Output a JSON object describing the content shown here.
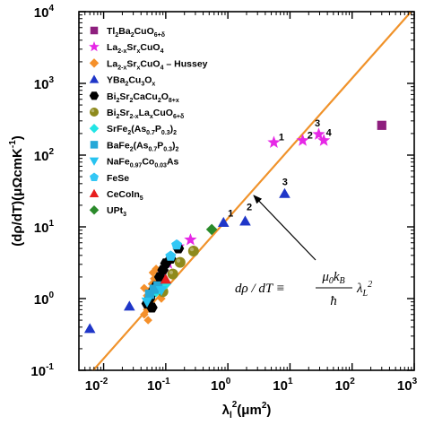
{
  "chart_data": {
    "type": "scatter",
    "x_scale": "log",
    "y_scale": "log",
    "xlim": [
      0.004,
      1000
    ],
    "ylim": [
      0.1,
      10000
    ],
    "xlabel": {
      "base": "λ",
      "sub": "l",
      "sup": "2",
      "unit": "(μm",
      "unit_sup": "2",
      "close": ")"
    },
    "ylabel": {
      "text": "(dρ/dT)(μΩcmK",
      "sup": "-1",
      "close": ")"
    },
    "x_ticks": [
      {
        "base": "10",
        "exp": "-2"
      },
      {
        "base": "10",
        "exp": "-1"
      },
      {
        "base": "10",
        "exp": "0"
      },
      {
        "base": "10",
        "exp": "1"
      },
      {
        "base": "10",
        "exp": "2"
      },
      {
        "base": "10",
        "exp": "3"
      }
    ],
    "y_ticks": [
      {
        "base": "10",
        "exp": "-1"
      },
      {
        "base": "10",
        "exp": "0"
      },
      {
        "base": "10",
        "exp": "1"
      },
      {
        "base": "10",
        "exp": "2"
      },
      {
        "base": "10",
        "exp": "3"
      },
      {
        "base": "10",
        "exp": "4"
      }
    ],
    "fit_line": {
      "color": "#f0922a",
      "points": [
        [
          0.0068,
          0.1
        ],
        [
          890,
          10000
        ]
      ]
    },
    "formula": {
      "lhs": "dρ / dT ≡",
      "numerator": "μ0kB",
      "denominator": "ħ",
      "rhs": "λL²"
    },
    "legend_placement": "top-left",
    "series": [
      {
        "name": "Tl2Ba2CuO6+δ",
        "legend": [
          [
            "Tl",
            ""
          ],
          [
            "2",
            "sub"
          ],
          [
            "Ba",
            ""
          ],
          [
            "2",
            "sub"
          ],
          [
            "CuO",
            ""
          ],
          [
            "6+δ",
            "sub"
          ]
        ],
        "marker": "square",
        "color": "#8e1f7e",
        "points": [
          [
            300,
            260
          ]
        ]
      },
      {
        "name": "La2-xSrxCuO4",
        "legend": [
          [
            "La",
            ""
          ],
          [
            "2-x",
            "sub"
          ],
          [
            "Sr",
            ""
          ],
          [
            "x",
            "sub"
          ],
          [
            "CuO",
            ""
          ],
          [
            "4",
            "sub"
          ]
        ],
        "marker": "star",
        "color": "#e628e6",
        "points": [
          [
            5.5,
            150
          ],
          [
            16,
            160
          ],
          [
            29,
            195
          ],
          [
            35,
            160
          ],
          [
            0.16,
            5.3
          ],
          [
            0.25,
            6.6
          ],
          [
            0.11,
            3.1
          ],
          [
            0.09,
            2.3
          ],
          [
            0.08,
            1.8
          ],
          [
            0.07,
            1.6
          ]
        ]
      },
      {
        "name": "La2-xSrxCuO4 – Hussey",
        "legend": [
          [
            "La",
            ""
          ],
          [
            "2-x",
            "sub"
          ],
          [
            "Sr",
            ""
          ],
          [
            "x",
            "sub"
          ],
          [
            "CuO",
            ""
          ],
          [
            "4",
            "sub"
          ],
          [
            " – Hussey",
            ""
          ]
        ],
        "marker": "diamond",
        "color": "#f5902a",
        "points": [
          [
            0.045,
            1.4
          ],
          [
            0.05,
            1.1
          ],
          [
            0.055,
            1.3
          ],
          [
            0.06,
            1.6
          ],
          [
            0.062,
            2.3
          ],
          [
            0.065,
            1.9
          ],
          [
            0.07,
            2.6
          ],
          [
            0.075,
            2.0
          ],
          [
            0.08,
            1.3
          ],
          [
            0.085,
            1.0
          ],
          [
            0.09,
            1.6
          ],
          [
            0.05,
            0.7
          ],
          [
            0.058,
            0.9
          ],
          [
            0.068,
            1.2
          ],
          [
            0.045,
            0.6
          ],
          [
            0.052,
            0.5
          ]
        ]
      },
      {
        "name": "YBa2Cu3Ox",
        "legend": [
          [
            "YBa",
            ""
          ],
          [
            "2",
            "sub"
          ],
          [
            "Cu",
            ""
          ],
          [
            "3",
            "sub"
          ],
          [
            "O",
            ""
          ],
          [
            "x",
            "sub"
          ]
        ],
        "marker": "triangle",
        "color": "#1f36c8",
        "points": [
          [
            0.006,
            0.38
          ],
          [
            0.026,
            0.78
          ],
          [
            0.85,
            11.5
          ],
          [
            1.9,
            12
          ],
          [
            8.2,
            29
          ]
        ]
      },
      {
        "name": "Bi2Sr2CaCu2O8+x",
        "legend": [
          [
            "Bi",
            ""
          ],
          [
            "2",
            "sub"
          ],
          [
            "Sr",
            ""
          ],
          [
            "2",
            "sub"
          ],
          [
            "CaCu",
            ""
          ],
          [
            "2",
            "sub"
          ],
          [
            "O",
            ""
          ],
          [
            "8+x",
            "sub"
          ]
        ],
        "marker": "hexagon",
        "color": "#000000",
        "points": [
          [
            0.05,
            0.85
          ],
          [
            0.055,
            1.0
          ],
          [
            0.06,
            1.2
          ],
          [
            0.07,
            1.5
          ],
          [
            0.08,
            2.0
          ],
          [
            0.09,
            2.5
          ],
          [
            0.1,
            3.1
          ],
          [
            0.12,
            3.6
          ],
          [
            0.16,
            5.0
          ],
          [
            0.06,
            0.75
          ]
        ]
      },
      {
        "name": "Bi2Sr2-xLaxCuO6+δ",
        "legend": [
          [
            "Bi",
            ""
          ],
          [
            "2",
            "sub"
          ],
          [
            "Sr",
            ""
          ],
          [
            "2-x",
            "sub"
          ],
          [
            "La",
            ""
          ],
          [
            "x",
            "sub"
          ],
          [
            "CuO",
            ""
          ],
          [
            "6+δ",
            "sub"
          ]
        ],
        "marker": "circle",
        "color": "#8e8a1c",
        "points": [
          [
            0.09,
            1.25
          ],
          [
            0.13,
            2.2
          ],
          [
            0.17,
            3.2
          ],
          [
            0.28,
            4.6
          ]
        ]
      },
      {
        "name": "SrFe2(As0.7P0.3)2",
        "legend": [
          [
            "SrFe",
            ""
          ],
          [
            "2",
            "sub"
          ],
          [
            "(As",
            ""
          ],
          [
            "0.7",
            "sub"
          ],
          [
            "P",
            ""
          ],
          [
            "0.3",
            "sub"
          ],
          [
            ")",
            ""
          ],
          [
            "2",
            "sub"
          ]
        ],
        "marker": "diamond",
        "color": "#22e5e5",
        "points": [
          [
            0.07,
            1.25
          ],
          [
            0.1,
            1.6
          ]
        ]
      },
      {
        "name": "BaFe2(As0.7P0.3)2",
        "legend": [
          [
            "BaFe",
            ""
          ],
          [
            "2",
            "sub"
          ],
          [
            "(As",
            ""
          ],
          [
            "0.7",
            "sub"
          ],
          [
            "P",
            ""
          ],
          [
            "0.3",
            "sub"
          ],
          [
            ")",
            ""
          ],
          [
            "2",
            "sub"
          ]
        ],
        "marker": "square",
        "color": "#26a8d8",
        "points": [
          [
            0.055,
            1.15
          ],
          [
            0.065,
            1.35
          ],
          [
            0.075,
            1.5
          ]
        ]
      },
      {
        "name": "NaFe0.97Co0.03As",
        "legend": [
          [
            "NaFe",
            ""
          ],
          [
            "0.97",
            "sub"
          ],
          [
            "Co",
            ""
          ],
          [
            "0.03",
            "sub"
          ],
          [
            "As",
            ""
          ]
        ],
        "marker": "triangle-down",
        "color": "#27c3f0",
        "points": [
          [
            0.05,
            0.9
          ],
          [
            0.085,
            1.3
          ]
        ]
      },
      {
        "name": "FeSe",
        "legend": [
          [
            "FeSe",
            ""
          ]
        ],
        "marker": "pentagon",
        "color": "#33c7f5",
        "points": [
          [
            0.15,
            5.6
          ],
          [
            0.12,
            3.9
          ]
        ]
      },
      {
        "name": "CeCoIn5",
        "legend": [
          [
            "CeCoIn",
            ""
          ],
          [
            "5",
            "sub"
          ]
        ],
        "marker": "triangle",
        "color": "#e81e1e",
        "points": [
          [
            0.1,
            1.85
          ]
        ]
      },
      {
        "name": "UPt3",
        "legend": [
          [
            "UPt",
            ""
          ],
          [
            "3",
            "sub"
          ]
        ],
        "marker": "diamond",
        "color": "#2a8a2a",
        "points": [
          [
            0.55,
            9.2
          ]
        ]
      }
    ],
    "annotations": [
      {
        "text": "1",
        "at": [
          6.6,
          160
        ]
      },
      {
        "text": "2",
        "at": [
          19,
          170
        ]
      },
      {
        "text": "3",
        "at": [
          25,
          250
        ]
      },
      {
        "text": "4",
        "at": [
          38,
          185
        ]
      },
      {
        "text": "1",
        "at": [
          1.0,
          14
        ]
      },
      {
        "text": "2",
        "at": [
          2.0,
          17
        ]
      },
      {
        "text": "3",
        "at": [
          7.5,
          38
        ]
      }
    ]
  }
}
